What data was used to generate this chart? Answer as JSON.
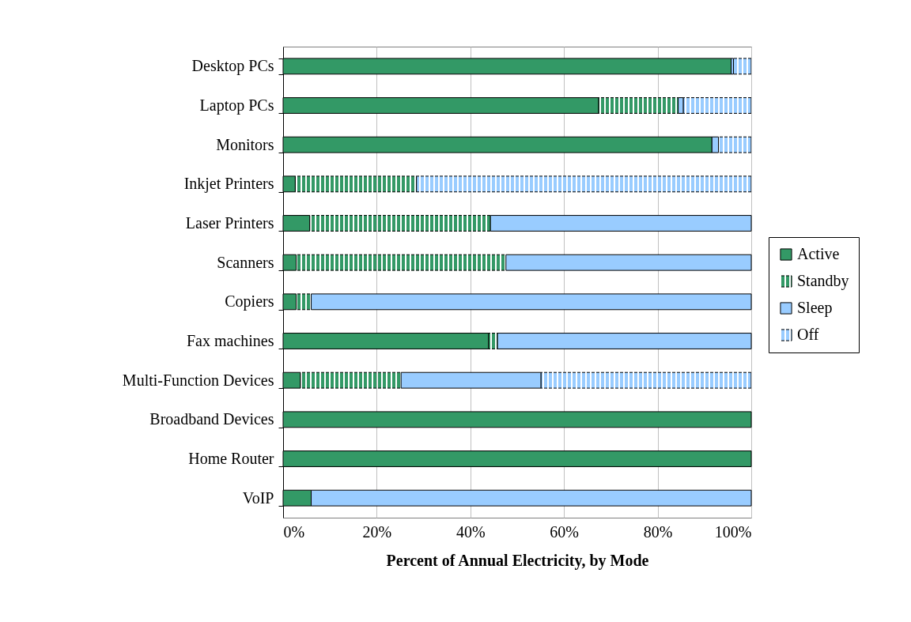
{
  "chart_data": {
    "type": "bar",
    "orientation": "horizontal",
    "stacked": true,
    "xlabel": "Percent of Annual Electricity, by Mode",
    "categories": [
      "Desktop PCs",
      "Laptop PCs",
      "Monitors",
      "Inkjet Printers",
      "Laser Printers",
      "Scanners",
      "Copiers",
      "Fax machines",
      "Multi-Function Devices",
      "Broadband Devices",
      "Home Router",
      "VoIP"
    ],
    "series": [
      {
        "name": "Active",
        "color": "#339966",
        "values": [
          95.7,
          67.4,
          91.6,
          2.6,
          5.7,
          2.8,
          2.8,
          43.9,
          3.7,
          100,
          100,
          6.0
        ]
      },
      {
        "name": "Standby",
        "color": "#339966",
        "values": [
          0,
          17.0,
          0,
          25.9,
          38.6,
          44.8,
          3.2,
          1.9,
          21.5,
          0,
          0,
          0
        ]
      },
      {
        "name": "Sleep",
        "color": "#99ccff",
        "values": [
          0.5,
          1.1,
          1.4,
          0,
          55.7,
          52.4,
          94.0,
          54.2,
          29.9,
          0,
          0,
          94.0
        ]
      },
      {
        "name": "Off",
        "color": "#99ccff",
        "values": [
          3.8,
          14.5,
          7.0,
          71.5,
          0,
          0,
          0,
          0,
          44.9,
          0,
          0,
          0
        ]
      }
    ],
    "xlim": [
      0,
      100
    ],
    "xticks": [
      {
        "value": 0,
        "label": "0%"
      },
      {
        "value": 20,
        "label": "20%"
      },
      {
        "value": 40,
        "label": "40%"
      },
      {
        "value": 60,
        "label": "60%"
      },
      {
        "value": 80,
        "label": "80%"
      },
      {
        "value": 100,
        "label": "100%"
      }
    ],
    "grid": "x",
    "legend": "right"
  }
}
